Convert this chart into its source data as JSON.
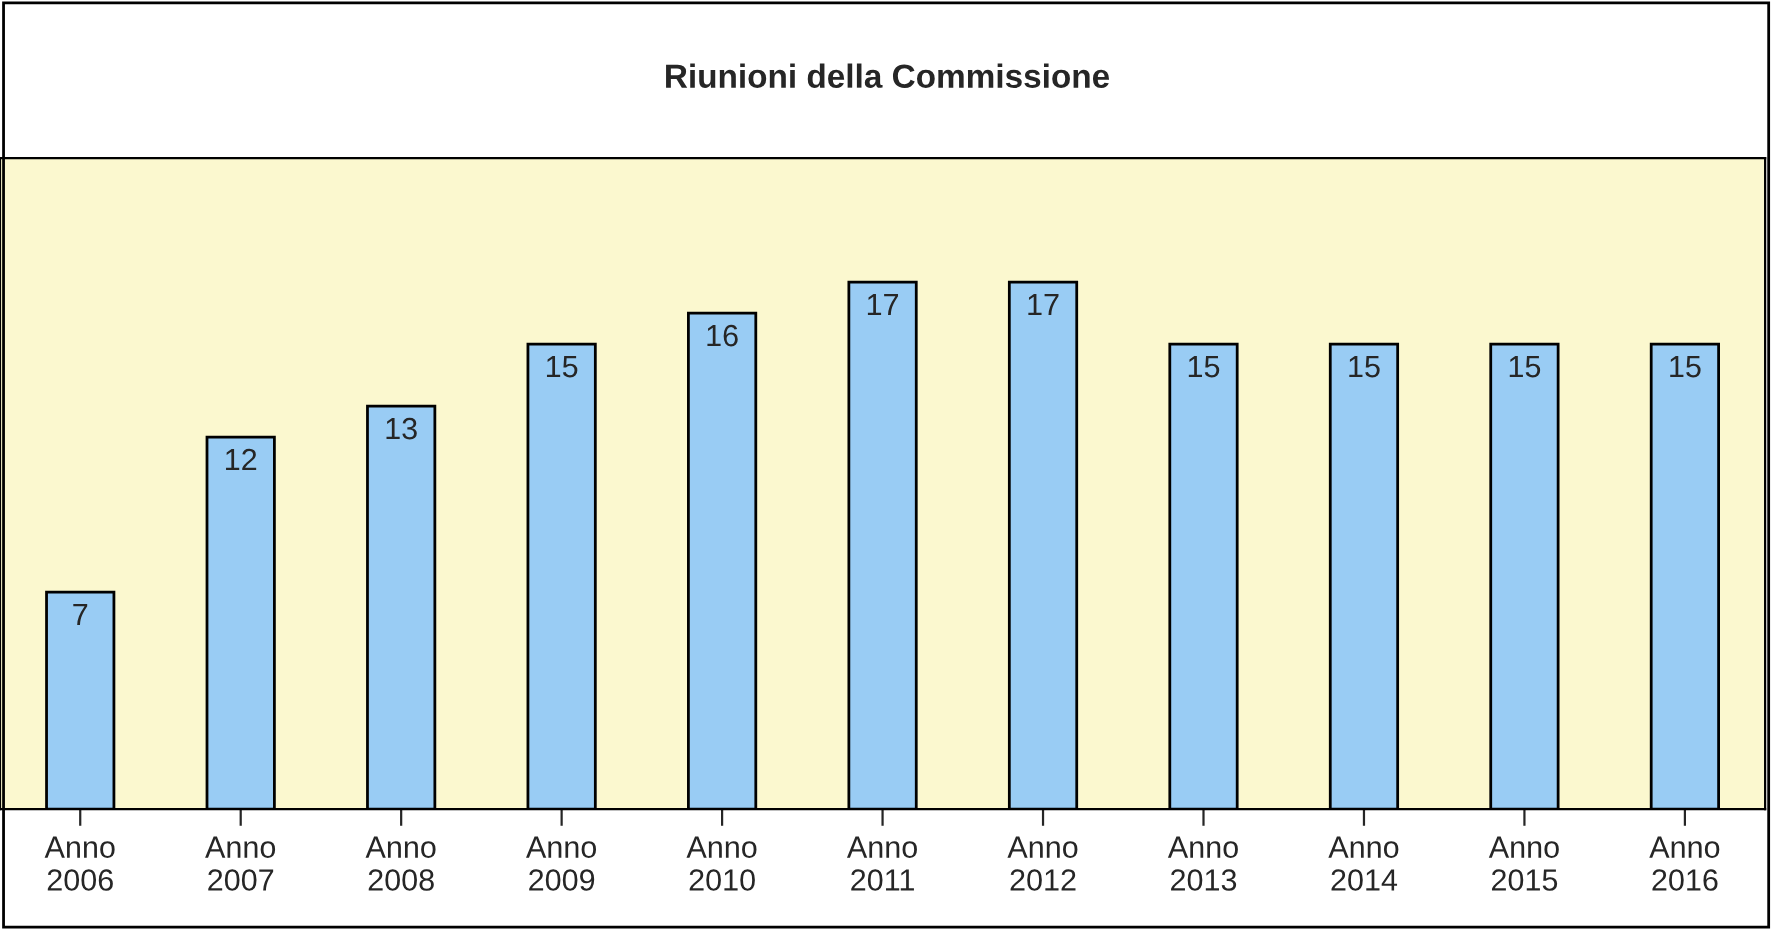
{
  "chart_data": {
    "type": "bar",
    "title": "Riunioni della Commissione",
    "categories": [
      "Anno\n2006",
      "Anno\n2007",
      "Anno\n2008",
      "Anno\n2009",
      "Anno\n2010",
      "Anno\n2011",
      "Anno\n2012",
      "Anno\n2013",
      "Anno\n2014",
      "Anno\n2015",
      "Anno\n2016"
    ],
    "values": [
      7,
      12,
      13,
      15,
      16,
      17,
      17,
      15,
      15,
      15,
      15
    ],
    "color": "#99ccf4",
    "ylim": [
      0,
      21
    ],
    "tick_labels": "x",
    "data_labels": true
  }
}
